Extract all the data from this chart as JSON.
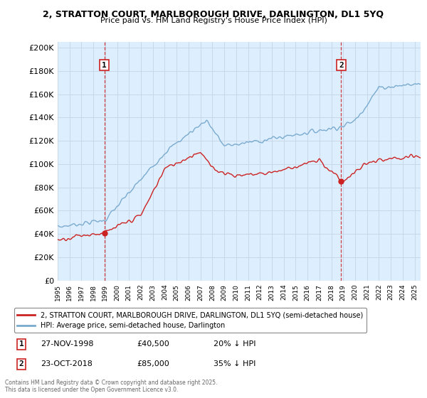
{
  "title_line1": "2, STRATTON COURT, MARLBOROUGH DRIVE, DARLINGTON, DL1 5YQ",
  "title_line2": "Price paid vs. HM Land Registry's House Price Index (HPI)",
  "ylabel_ticks": [
    "£0",
    "£20K",
    "£40K",
    "£60K",
    "£80K",
    "£100K",
    "£120K",
    "£140K",
    "£160K",
    "£180K",
    "£200K"
  ],
  "ytick_values": [
    0,
    20000,
    40000,
    60000,
    80000,
    100000,
    120000,
    140000,
    160000,
    180000,
    200000
  ],
  "ylim": [
    0,
    205000
  ],
  "xlim_start": 1995.0,
  "xlim_end": 2025.5,
  "transaction1_x": 1998.92,
  "transaction1_y": 40500,
  "transaction1_label": "1",
  "transaction2_x": 2018.83,
  "transaction2_y": 85000,
  "transaction2_label": "2",
  "hpi_color": "#7aabcf",
  "price_color": "#cc2222",
  "grid_color": "#c8d8e8",
  "bg_color": "#ddeeff",
  "legend_label1": "2, STRATTON COURT, MARLBOROUGH DRIVE, DARLINGTON, DL1 5YQ (semi-detached house)",
  "legend_label2": "HPI: Average price, semi-detached house, Darlington",
  "ann1_date": "27-NOV-1998",
  "ann1_price": "£40,500",
  "ann1_pct": "20% ↓ HPI",
  "ann2_date": "23-OCT-2018",
  "ann2_price": "£85,000",
  "ann2_pct": "35% ↓ HPI",
  "footnote": "Contains HM Land Registry data © Crown copyright and database right 2025.\nThis data is licensed under the Open Government Licence v3.0."
}
